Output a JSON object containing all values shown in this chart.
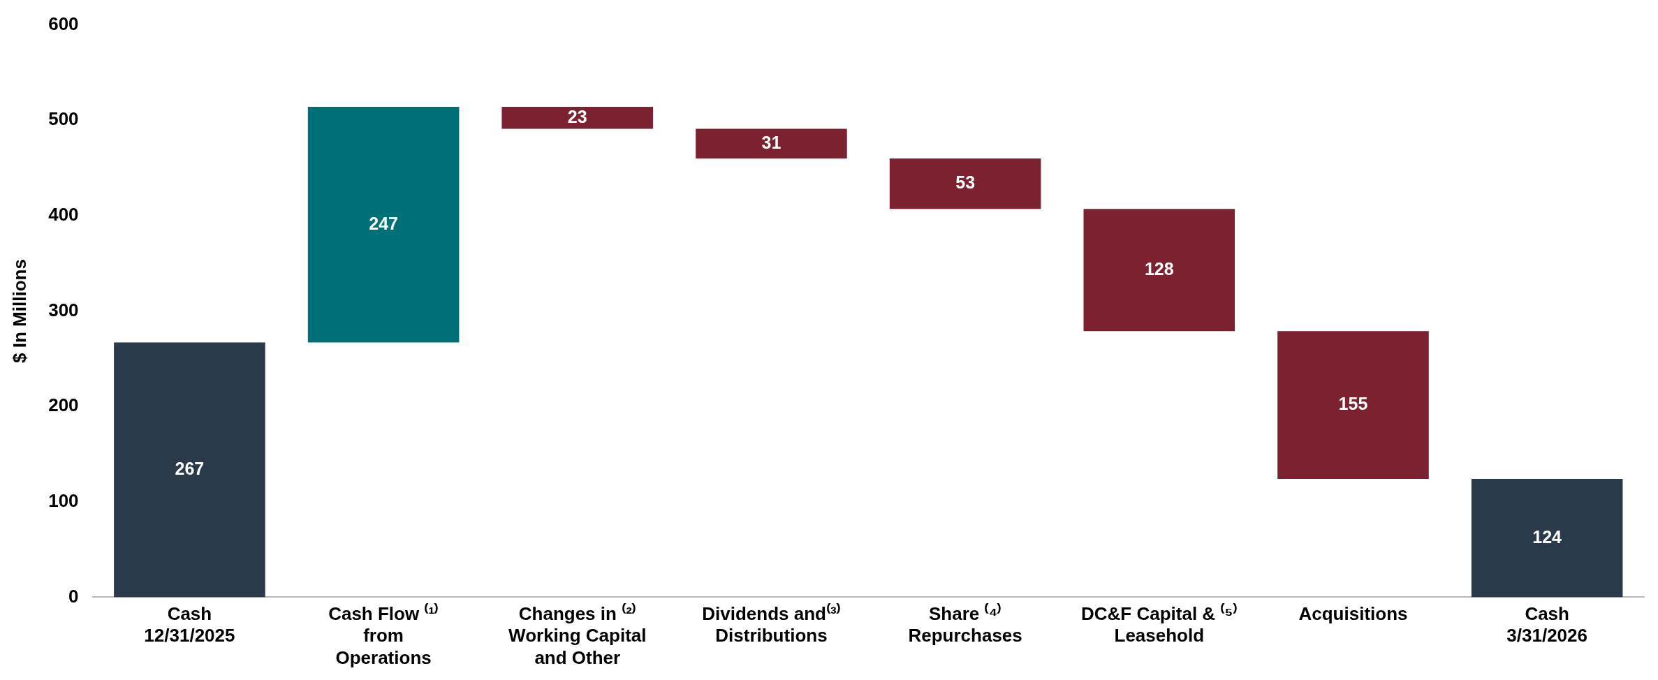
{
  "chart_data": {
    "type": "bar",
    "ylabel": "$ In Millions",
    "categories": [
      "Cash\n12/31/2025",
      "Cash Flow ⁽¹⁾\nfrom\nOperations",
      "Changes in ⁽²⁾\nWorking Capital\nand Other",
      "Dividends and⁽³⁾\nDistributions",
      "Share ⁽⁴⁾\nRepurchases",
      "DC&F Capital & ⁽⁵⁾\nLeasehold",
      "Acquisitions",
      "Cash\n3/31/2026"
    ],
    "values": [
      267,
      247,
      23,
      31,
      53,
      128,
      155,
      124
    ],
    "base": [
      0,
      267,
      491,
      460,
      407,
      279,
      124,
      0
    ],
    "colors": [
      "#2b3a4a",
      "#007078",
      "#7b2130",
      "#7b2130",
      "#7b2130",
      "#7b2130",
      "#7b2130",
      "#2b3a4a"
    ],
    "ylim": [
      0,
      600
    ],
    "yticks": [
      0,
      100,
      200,
      300,
      400,
      500,
      600
    ],
    "grid": false,
    "legend": false,
    "data_labels": true
  }
}
